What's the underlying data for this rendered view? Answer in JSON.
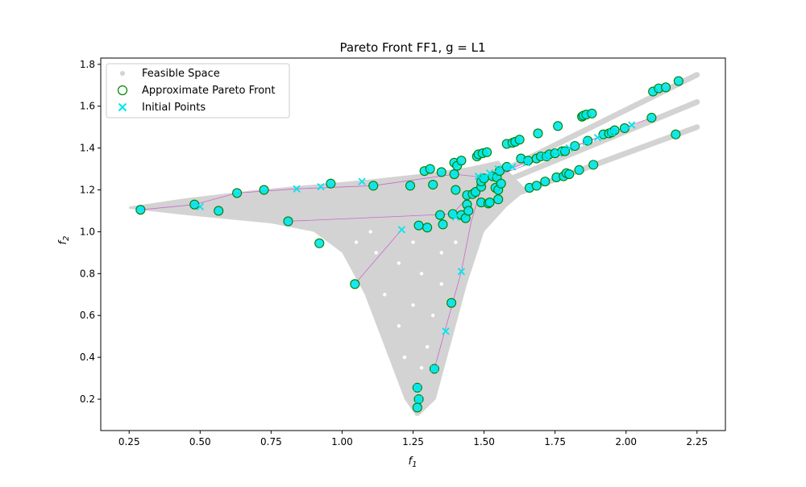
{
  "chart_data": {
    "type": "scatter",
    "title": "Pareto Front FF1, g = L1",
    "xlabel": "f",
    "xlabel_sub": "1",
    "ylabel": "f",
    "ylabel_sub": "2",
    "xlim": [
      0.15,
      2.35
    ],
    "ylim": [
      0.05,
      1.83
    ],
    "x_ticks": [
      0.25,
      0.5,
      0.75,
      1.0,
      1.25,
      1.5,
      1.75,
      2.0,
      2.25
    ],
    "x_tick_labels": [
      "0.25",
      "0.50",
      "0.75",
      "1.00",
      "1.25",
      "1.50",
      "1.75",
      "2.00",
      "2.25"
    ],
    "y_ticks": [
      0.2,
      0.4,
      0.6,
      0.8,
      1.0,
      1.2,
      1.4,
      1.6,
      1.8
    ],
    "y_tick_labels": [
      "0.2",
      "0.4",
      "0.6",
      "0.8",
      "1.0",
      "1.2",
      "1.4",
      "1.6",
      "1.8"
    ],
    "grid": false,
    "legend_position": "top-left",
    "colors": {
      "feasible": "#d3d3d3",
      "pareto": "#008000",
      "initial": "#00e5ee",
      "path": "#cc66cc"
    },
    "series": [
      {
        "name": "Feasible Space",
        "marker": "dot",
        "regions": {
          "left_wing_upper": [
            [
              0.25,
              1.12
            ],
            [
              0.45,
              1.16
            ],
            [
              0.7,
              1.2
            ],
            [
              0.9,
              1.225
            ],
            [
              1.1,
              1.25
            ],
            [
              1.3,
              1.28
            ],
            [
              1.45,
              1.31
            ],
            [
              1.55,
              1.34
            ]
          ],
          "left_wing_lower": [
            [
              0.25,
              1.11
            ],
            [
              0.45,
              1.08
            ],
            [
              0.6,
              1.06
            ],
            [
              0.75,
              1.04
            ],
            [
              0.9,
              1.0
            ],
            [
              1.0,
              0.9
            ],
            [
              1.08,
              0.7
            ],
            [
              1.15,
              0.45
            ],
            [
              1.22,
              0.2
            ],
            [
              1.26,
              0.12
            ]
          ],
          "right_lower": [
            [
              1.27,
              0.12
            ],
            [
              1.33,
              0.2
            ],
            [
              1.38,
              0.45
            ],
            [
              1.44,
              0.75
            ],
            [
              1.5,
              1.0
            ],
            [
              1.58,
              1.12
            ],
            [
              1.65,
              1.2
            ]
          ],
          "bands": [
            {
              "from": [
                1.45,
                1.1
              ],
              "to": [
                2.25,
                1.5
              ]
            },
            {
              "from": [
                1.5,
                1.2
              ],
              "to": [
                2.25,
                1.62
              ]
            },
            {
              "from": [
                1.55,
                1.28
              ],
              "to": [
                2.25,
                1.75
              ]
            }
          ]
        }
      },
      {
        "name": "Approximate Pareto Front",
        "marker": "open-circle",
        "points": [
          [
            0.29,
            1.105
          ],
          [
            0.48,
            1.13
          ],
          [
            0.565,
            1.1
          ],
          [
            0.63,
            1.185
          ],
          [
            0.725,
            1.2
          ],
          [
            0.81,
            1.05
          ],
          [
            0.92,
            0.945
          ],
          [
            0.96,
            1.23
          ],
          [
            1.045,
            0.75
          ],
          [
            1.11,
            1.22
          ],
          [
            1.24,
            1.22
          ],
          [
            1.265,
            0.255
          ],
          [
            1.27,
            0.2
          ],
          [
            1.265,
            0.16
          ],
          [
            1.27,
            1.03
          ],
          [
            1.29,
            1.29
          ],
          [
            1.3,
            1.02
          ],
          [
            1.31,
            1.3
          ],
          [
            1.32,
            1.225
          ],
          [
            1.325,
            0.345
          ],
          [
            1.345,
            1.08
          ],
          [
            1.35,
            1.285
          ],
          [
            1.355,
            1.035
          ],
          [
            1.385,
            0.66
          ],
          [
            1.39,
            1.085
          ],
          [
            1.395,
            1.275
          ],
          [
            1.395,
            1.33
          ],
          [
            1.4,
            1.2
          ],
          [
            1.405,
            1.315
          ],
          [
            1.42,
            1.34
          ],
          [
            1.42,
            1.08
          ],
          [
            1.435,
            1.065
          ],
          [
            1.44,
            1.13
          ],
          [
            1.44,
            1.175
          ],
          [
            1.445,
            1.1
          ],
          [
            1.46,
            1.18
          ],
          [
            1.47,
            1.19
          ],
          [
            1.475,
            1.36
          ],
          [
            1.48,
            1.37
          ],
          [
            1.49,
            1.14
          ],
          [
            1.49,
            1.215
          ],
          [
            1.49,
            1.24
          ],
          [
            1.495,
            1.375
          ],
          [
            1.5,
            1.255
          ],
          [
            1.51,
            1.38
          ],
          [
            1.515,
            1.135
          ],
          [
            1.52,
            1.14
          ],
          [
            1.53,
            1.265
          ],
          [
            1.54,
            1.21
          ],
          [
            1.545,
            1.26
          ],
          [
            1.55,
            1.155
          ],
          [
            1.55,
            1.2
          ],
          [
            1.555,
            1.29
          ],
          [
            1.56,
            1.23
          ],
          [
            1.58,
            1.31
          ],
          [
            1.58,
            1.42
          ],
          [
            1.6,
            1.425
          ],
          [
            1.61,
            1.43
          ],
          [
            1.625,
            1.44
          ],
          [
            1.63,
            1.35
          ],
          [
            1.655,
            1.34
          ],
          [
            1.66,
            1.21
          ],
          [
            1.685,
            1.22
          ],
          [
            1.685,
            1.35
          ],
          [
            1.69,
            1.47
          ],
          [
            1.7,
            1.36
          ],
          [
            1.715,
            1.24
          ],
          [
            1.72,
            1.36
          ],
          [
            1.73,
            1.37
          ],
          [
            1.75,
            1.375
          ],
          [
            1.755,
            1.26
          ],
          [
            1.76,
            1.505
          ],
          [
            1.775,
            1.385
          ],
          [
            1.78,
            1.265
          ],
          [
            1.785,
            1.385
          ],
          [
            1.79,
            1.28
          ],
          [
            1.8,
            1.275
          ],
          [
            1.82,
            1.41
          ],
          [
            1.835,
            1.295
          ],
          [
            1.845,
            1.55
          ],
          [
            1.85,
            1.555
          ],
          [
            1.86,
            1.56
          ],
          [
            1.865,
            1.435
          ],
          [
            1.88,
            1.565
          ],
          [
            1.885,
            1.32
          ],
          [
            1.92,
            1.465
          ],
          [
            1.94,
            1.47
          ],
          [
            1.95,
            1.475
          ],
          [
            1.96,
            1.485
          ],
          [
            1.995,
            1.495
          ],
          [
            2.09,
            1.545
          ],
          [
            2.095,
            1.67
          ],
          [
            2.115,
            1.685
          ],
          [
            2.14,
            1.69
          ],
          [
            2.175,
            1.465
          ],
          [
            2.185,
            1.72
          ]
        ]
      },
      {
        "name": "Initial Points",
        "marker": "x",
        "points": [
          [
            0.5,
            1.12
          ],
          [
            0.84,
            1.205
          ],
          [
            0.925,
            1.215
          ],
          [
            1.07,
            1.24
          ],
          [
            1.21,
            1.01
          ],
          [
            1.325,
            0.345
          ],
          [
            1.365,
            0.525
          ],
          [
            1.4,
            1.07
          ],
          [
            1.42,
            0.81
          ],
          [
            1.48,
            1.265
          ],
          [
            1.5,
            1.26
          ],
          [
            1.52,
            1.28
          ],
          [
            1.55,
            1.3
          ],
          [
            1.6,
            1.31
          ],
          [
            1.65,
            1.33
          ],
          [
            1.72,
            1.36
          ],
          [
            1.76,
            1.38
          ],
          [
            1.8,
            1.4
          ],
          [
            1.86,
            1.43
          ],
          [
            1.9,
            1.45
          ],
          [
            1.95,
            1.475
          ],
          [
            2.02,
            1.51
          ],
          [
            1.27,
            0.2
          ],
          [
            1.265,
            0.255
          ]
        ]
      }
    ],
    "paths": [
      [
        [
          0.29,
          1.105
        ],
        [
          0.48,
          1.13
        ],
        [
          0.63,
          1.185
        ],
        [
          0.84,
          1.205
        ],
        [
          1.11,
          1.22
        ],
        [
          1.395,
          1.275
        ],
        [
          1.5,
          1.26
        ]
      ],
      [
        [
          0.81,
          1.05
        ],
        [
          1.39,
          1.085
        ],
        [
          1.5,
          1.255
        ]
      ],
      [
        [
          1.045,
          0.75
        ],
        [
          1.21,
          1.01
        ]
      ],
      [
        [
          1.325,
          0.345
        ],
        [
          1.42,
          0.81
        ],
        [
          1.455,
          1.05
        ],
        [
          1.5,
          1.255
        ]
      ],
      [
        [
          1.5,
          1.26
        ],
        [
          1.65,
          1.33
        ],
        [
          1.8,
          1.4
        ],
        [
          1.94,
          1.47
        ],
        [
          2.09,
          1.545
        ]
      ],
      [
        [
          1.52,
          1.255
        ],
        [
          1.7,
          1.345
        ],
        [
          1.9,
          1.45
        ]
      ]
    ]
  }
}
